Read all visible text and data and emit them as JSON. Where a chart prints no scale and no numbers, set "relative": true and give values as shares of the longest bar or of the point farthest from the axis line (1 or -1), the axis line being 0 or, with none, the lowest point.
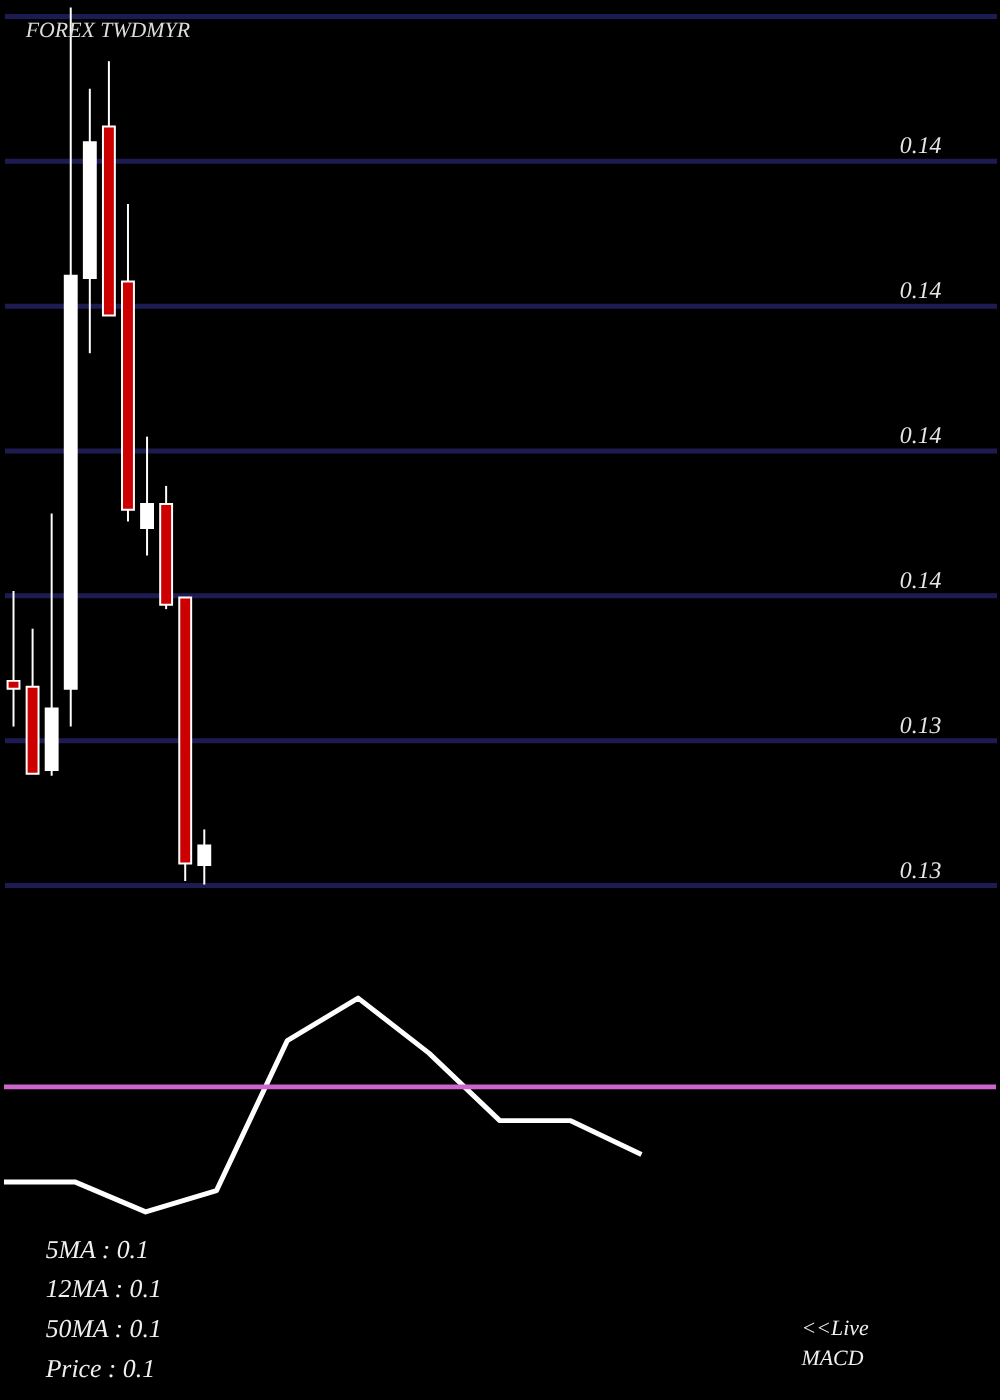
{
  "chart_data": [
    {
      "type": "candlestick",
      "title": "FOREX TWDMYR",
      "categories": [
        null,
        null,
        null,
        null,
        null,
        null,
        null,
        null,
        null,
        null,
        null,
        null,
        null,
        null,
        null,
        null,
        null,
        null,
        null,
        null,
        null,
        null,
        null,
        null,
        null,
        null,
        null,
        null,
        null,
        null,
        null,
        null,
        null,
        null,
        null,
        null,
        null,
        null,
        null,
        null,
        null,
        null,
        null,
        null,
        null,
        null,
        null,
        null,
        null,
        null,
        null,
        null
      ],
      "ohlc": [
        [
          0.13431,
          0.13555,
          0.13368,
          0.1342
        ],
        [
          0.13423,
          0.13503,
          0.13303,
          0.13303
        ],
        [
          0.13308,
          0.13662,
          0.133,
          0.13393
        ],
        [
          0.1342,
          0.1436,
          0.13368,
          0.1399
        ],
        [
          0.13987,
          0.14248,
          0.13883,
          0.14174
        ],
        [
          0.14196,
          0.14286,
          0.13935,
          0.13935
        ],
        [
          0.13982,
          0.14089,
          0.13651,
          0.13667
        ],
        [
          0.13642,
          0.13768,
          0.13604,
          0.13675
        ],
        [
          0.13675,
          0.137,
          0.1353,
          0.13536
        ],
        [
          0.13546,
          0.13546,
          0.13155,
          0.13179
        ],
        [
          0.13177,
          0.13226,
          0.1315,
          0.13204
        ],
        null,
        null,
        null,
        null,
        null,
        null,
        null,
        null,
        null,
        null,
        null,
        null,
        null,
        null,
        null,
        null,
        null,
        null,
        null,
        null,
        null,
        null,
        null,
        null,
        null,
        null,
        null,
        null,
        null,
        null,
        null,
        null,
        null,
        null,
        null,
        null,
        null,
        null,
        null,
        null,
        null
      ],
      "colors": [
        "#cc0000",
        "#cc0000",
        "#ffffff",
        "#ffffff",
        "#ffffff",
        "#cc0000",
        "#cc0000",
        "#ffffff",
        "#cc0000",
        "#cc0000",
        "#ffffff",
        null,
        null,
        null,
        null,
        null,
        null,
        null,
        null,
        null,
        null,
        null,
        null,
        null,
        null,
        null,
        null,
        null,
        null,
        null,
        null,
        null,
        null,
        null,
        null,
        null,
        null,
        null,
        null,
        null,
        null,
        null,
        null,
        null,
        null,
        null,
        null,
        null,
        null,
        null,
        null,
        null
      ],
      "ylim": [
        0.1315,
        0.1436
      ],
      "yticks": [
        {
          "value": 0.1435,
          "label": null
        },
        {
          "value": 0.1415,
          "label": "0.14"
        },
        {
          "value": 0.1395,
          "label": "0.14"
        },
        {
          "value": 0.1375,
          "label": "0.14"
        },
        {
          "value": 0.1355,
          "label": "0.14"
        },
        {
          "value": 0.1335,
          "label": "0.13"
        },
        {
          "value": 0.1315,
          "label": "0.13"
        }
      ],
      "grid": "y",
      "tick_labels": "y"
    },
    {
      "type": "line",
      "relative": true,
      "categories": [
        null,
        null,
        null,
        null,
        null,
        null,
        null,
        null,
        null,
        null,
        null
      ],
      "series": [
        {
          "color": "#ffffff",
          "values": [
            -0.76,
            -0.76,
            -1,
            -0.83,
            0.37,
            0.71,
            0.27,
            -0.27,
            -0.27,
            -0.54,
            null
          ]
        }
      ],
      "ref_lines": [
        {
          "axis": "y",
          "value": 0,
          "color": "#cc66cc"
        }
      ],
      "annotations": [
        "5MA : 0.1",
        "12MA : 0.1",
        "50MA : 0.1",
        "Price : 0.1",
        "<<Live MACD"
      ],
      "tick_labels": false
    }
  ]
}
